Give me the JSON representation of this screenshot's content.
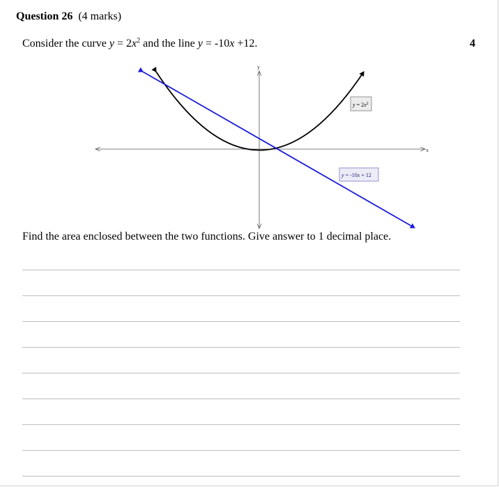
{
  "question": {
    "label": "Question 26",
    "marks_text": "(4 marks)",
    "intro_pre": "Consider the curve ",
    "curve_y": "y",
    "curve_eq": " = 2",
    "curve_x": "x",
    "curve_exp": "2",
    "intro_mid": " and the line ",
    "line_y": "y",
    "line_eq": " = -10",
    "line_x": "x",
    "line_tail": " +12.",
    "marks_number": "4",
    "task": "Find the area enclosed between the two functions. Give answer to 1 decimal place."
  },
  "graph": {
    "x_axis_label": "x",
    "y_axis_label": "y",
    "curve_label": {
      "y": "y",
      "eq": " = 2",
      "x": "x",
      "exp": "2"
    },
    "line_label": {
      "y": "y",
      "eq": " = -10",
      "x": "x",
      "tail": " + 12"
    },
    "curve_color": "#000000",
    "line_color": "#1a1adc",
    "axis_color": "#555555"
  },
  "answer_lines": 9
}
